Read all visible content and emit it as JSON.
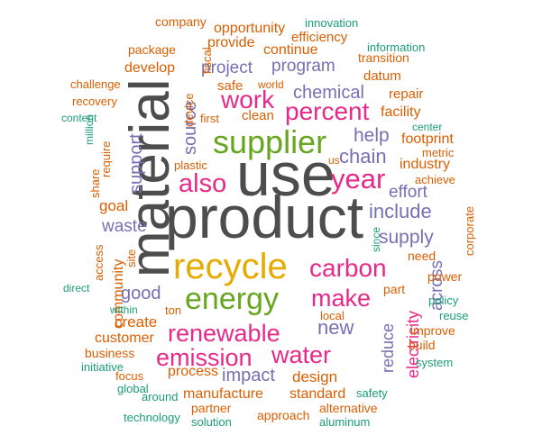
{
  "colors": {
    "gray": "#4d4d4d",
    "pink": "#e7298a",
    "green": "#66a61e",
    "gold": "#e6ab02",
    "purple": "#7570b3",
    "orange": "#d95f02",
    "teal": "#1b9e77"
  },
  "words": [
    {
      "text": "product",
      "color": "gray"
    },
    {
      "text": "use",
      "color": "gray"
    },
    {
      "text": "material",
      "color": "gray"
    },
    {
      "text": "recycle",
      "color": "gold"
    },
    {
      "text": "supplier",
      "color": "green"
    },
    {
      "text": "energy",
      "color": "green"
    },
    {
      "text": "renewable",
      "color": "pink"
    },
    {
      "text": "carbon",
      "color": "pink"
    },
    {
      "text": "emission",
      "color": "pink"
    },
    {
      "text": "work",
      "color": "pink"
    },
    {
      "text": "percent",
      "color": "pink"
    },
    {
      "text": "also",
      "color": "pink"
    },
    {
      "text": "year",
      "color": "pink"
    },
    {
      "text": "make",
      "color": "pink"
    },
    {
      "text": "water",
      "color": "pink"
    },
    {
      "text": "chain",
      "color": "purple"
    },
    {
      "text": "help",
      "color": "purple"
    },
    {
      "text": "chemical",
      "color": "purple"
    },
    {
      "text": "project",
      "color": "purple"
    },
    {
      "text": "program",
      "color": "purple"
    },
    {
      "text": "include",
      "color": "purple"
    },
    {
      "text": "supply",
      "color": "purple"
    },
    {
      "text": "good",
      "color": "purple"
    },
    {
      "text": "new",
      "color": "purple"
    },
    {
      "text": "impact",
      "color": "purple"
    },
    {
      "text": "waste",
      "color": "purple"
    },
    {
      "text": "source",
      "color": "purple"
    },
    {
      "text": "support",
      "color": "purple"
    },
    {
      "text": "effort",
      "color": "purple"
    },
    {
      "text": "across",
      "color": "purple"
    },
    {
      "text": "reduce",
      "color": "purple"
    },
    {
      "text": "electricity",
      "color": "pink"
    },
    {
      "text": "industry",
      "color": "orange"
    },
    {
      "text": "footprint",
      "color": "orange"
    },
    {
      "text": "facility",
      "color": "orange"
    },
    {
      "text": "design",
      "color": "orange"
    },
    {
      "text": "create",
      "color": "orange"
    },
    {
      "text": "customer",
      "color": "orange"
    },
    {
      "text": "community",
      "color": "orange"
    },
    {
      "text": "goal",
      "color": "orange"
    },
    {
      "text": "process",
      "color": "orange"
    },
    {
      "text": "manufacture",
      "color": "orange"
    },
    {
      "text": "standard",
      "color": "orange"
    },
    {
      "text": "continue",
      "color": "orange"
    },
    {
      "text": "provide",
      "color": "orange"
    },
    {
      "text": "develop",
      "color": "orange"
    },
    {
      "text": "opportunity",
      "color": "orange"
    },
    {
      "text": "efficiency",
      "color": "orange"
    },
    {
      "text": "datum",
      "color": "orange"
    },
    {
      "text": "repair",
      "color": "orange"
    },
    {
      "text": "safe",
      "color": "orange"
    },
    {
      "text": "clean",
      "color": "orange"
    },
    {
      "text": "first",
      "color": "orange"
    },
    {
      "text": "plastic",
      "color": "orange"
    },
    {
      "text": "device",
      "color": "orange"
    },
    {
      "text": "fiscal",
      "color": "orange"
    },
    {
      "text": "package",
      "color": "orange"
    },
    {
      "text": "company",
      "color": "orange"
    },
    {
      "text": "challenge",
      "color": "orange"
    },
    {
      "text": "recovery",
      "color": "orange"
    },
    {
      "text": "require",
      "color": "orange"
    },
    {
      "text": "share",
      "color": "orange"
    },
    {
      "text": "access",
      "color": "orange"
    },
    {
      "text": "site",
      "color": "orange"
    },
    {
      "text": "business",
      "color": "orange"
    },
    {
      "text": "focus",
      "color": "orange"
    },
    {
      "text": "partner",
      "color": "orange"
    },
    {
      "text": "approach",
      "color": "orange"
    },
    {
      "text": "alternative",
      "color": "orange"
    },
    {
      "text": "power",
      "color": "orange"
    },
    {
      "text": "part",
      "color": "orange"
    },
    {
      "text": "need",
      "color": "orange"
    },
    {
      "text": "improve",
      "color": "orange"
    },
    {
      "text": "build",
      "color": "orange"
    },
    {
      "text": "achieve",
      "color": "orange"
    },
    {
      "text": "metric",
      "color": "orange"
    },
    {
      "text": "corporate",
      "color": "orange"
    },
    {
      "text": "transition",
      "color": "orange"
    },
    {
      "text": "us",
      "color": "orange"
    },
    {
      "text": "ton",
      "color": "orange"
    },
    {
      "text": "local",
      "color": "orange"
    },
    {
      "text": "world",
      "color": "orange"
    },
    {
      "text": "innovation",
      "color": "teal"
    },
    {
      "text": "information",
      "color": "teal"
    },
    {
      "text": "content",
      "color": "teal"
    },
    {
      "text": "million",
      "color": "teal"
    },
    {
      "text": "center",
      "color": "teal"
    },
    {
      "text": "since",
      "color": "teal"
    },
    {
      "text": "policy",
      "color": "teal"
    },
    {
      "text": "reuse",
      "color": "teal"
    },
    {
      "text": "system",
      "color": "teal"
    },
    {
      "text": "safety",
      "color": "teal"
    },
    {
      "text": "aluminum",
      "color": "teal"
    },
    {
      "text": "solution",
      "color": "teal"
    },
    {
      "text": "technology",
      "color": "teal"
    },
    {
      "text": "around",
      "color": "teal"
    },
    {
      "text": "global",
      "color": "teal"
    },
    {
      "text": "initiative",
      "color": "teal"
    },
    {
      "text": "within",
      "color": "teal"
    },
    {
      "text": "direct",
      "color": "teal"
    }
  ]
}
